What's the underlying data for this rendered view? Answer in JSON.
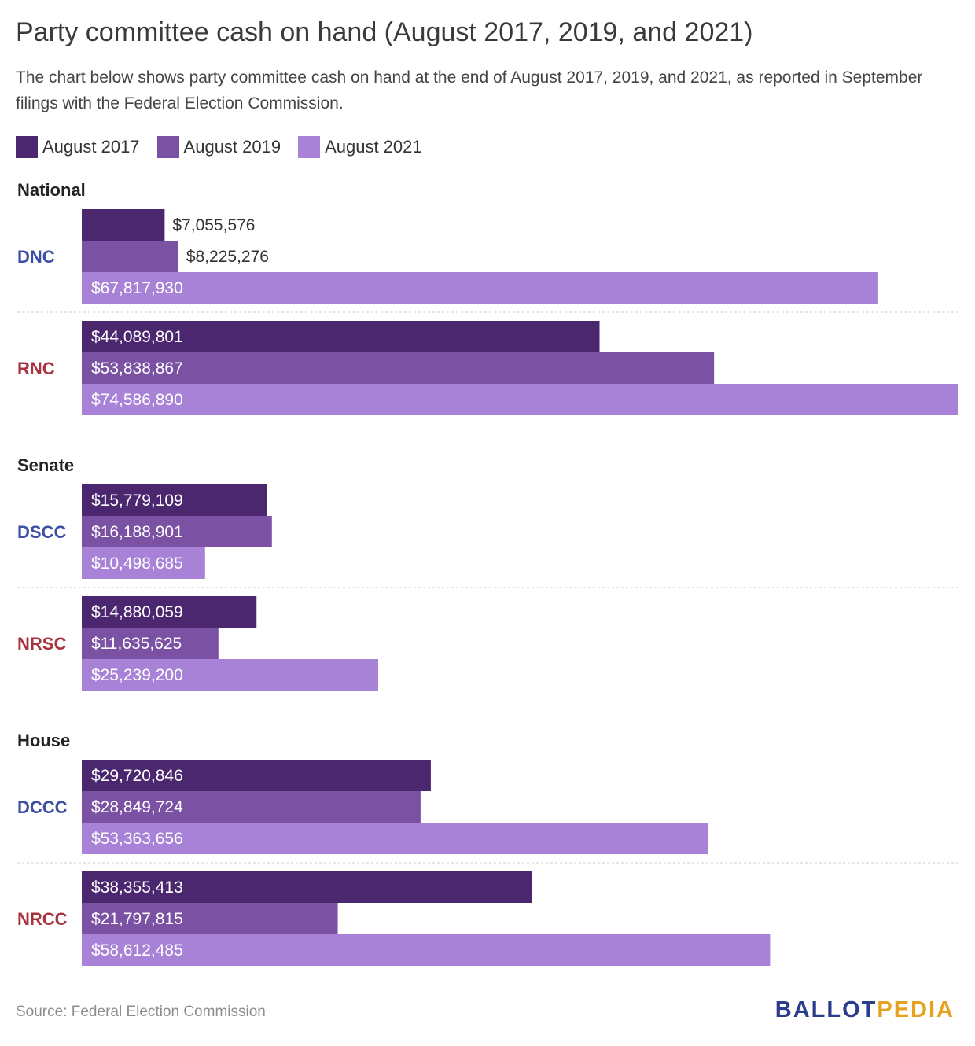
{
  "title": "Party committee cash on hand (August 2017, 2019, and 2021)",
  "subtitle": "The chart below shows party committee cash on hand at the end of August 2017, 2019, and 2021, as reported in September filings with the Federal Election Commission.",
  "source": "Source: Federal Election Commission",
  "brand": {
    "part1": "BALLOT",
    "part2": "PEDIA",
    "color1": "#2b3c8d",
    "color2": "#e6a21e"
  },
  "colors": {
    "democrat": "#3c4fa5",
    "republican": "#a8323e"
  },
  "chart_data": {
    "type": "bar",
    "orientation": "horizontal",
    "title": "Party committee cash on hand (August 2017, 2019, and 2021)",
    "xlabel": "",
    "ylabel": "",
    "xlim": [
      0,
      74586890
    ],
    "series": [
      {
        "name": "August 2017",
        "color": "#4b2770"
      },
      {
        "name": "August 2019",
        "color": "#7b51a4"
      },
      {
        "name": "August 2021",
        "color": "#a882d6"
      }
    ],
    "groups": [
      {
        "name": "National",
        "committees": [
          {
            "name": "DNC",
            "party": "democrat",
            "values": [
              7055576,
              8225276,
              67817930
            ],
            "labels": [
              "$7,055,576",
              "$8,225,276",
              "$67,817,930"
            ]
          },
          {
            "name": "RNC",
            "party": "republican",
            "values": [
              44089801,
              53838867,
              74586890
            ],
            "labels": [
              "$44,089,801",
              "$53,838,867",
              "$74,586,890"
            ]
          }
        ]
      },
      {
        "name": "Senate",
        "committees": [
          {
            "name": "DSCC",
            "party": "democrat",
            "values": [
              15779109,
              16188901,
              10498685
            ],
            "labels": [
              "$15,779,109",
              "$16,188,901",
              "$10,498,685"
            ]
          },
          {
            "name": "NRSC",
            "party": "republican",
            "values": [
              14880059,
              11635625,
              25239200
            ],
            "labels": [
              "$14,880,059",
              "$11,635,625",
              "$25,239,200"
            ]
          }
        ]
      },
      {
        "name": "House",
        "committees": [
          {
            "name": "DCCC",
            "party": "democrat",
            "values": [
              29720846,
              28849724,
              53363656
            ],
            "labels": [
              "$29,720,846",
              "$28,849,724",
              "$53,363,656"
            ]
          },
          {
            "name": "NRCC",
            "party": "republican",
            "values": [
              38355413,
              21797815,
              58612485
            ],
            "labels": [
              "$38,355,413",
              "$21,797,815",
              "$58,612,485"
            ]
          }
        ]
      }
    ]
  }
}
